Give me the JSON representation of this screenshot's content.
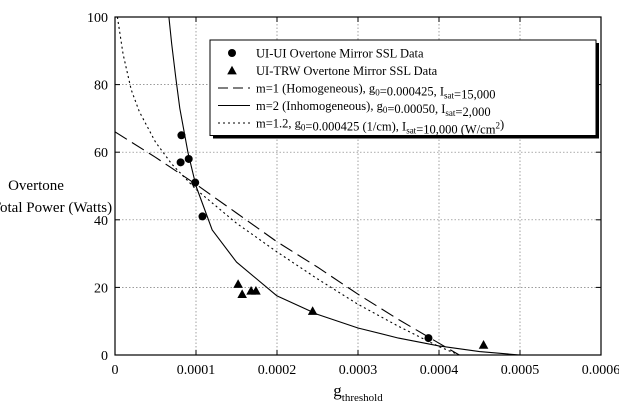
{
  "chart_data": {
    "type": "scatter",
    "title": "",
    "xlabel": "g",
    "xlabel_subscript": "threshold",
    "ylabel_line1": "Overtone",
    "ylabel_line2": "Total Power (Watts)",
    "xlim": [
      0,
      0.0006
    ],
    "ylim": [
      0,
      100
    ],
    "xticks": [
      0,
      0.0001,
      0.0002,
      0.0003,
      0.0004,
      0.0005,
      0.0006
    ],
    "xtick_labels": [
      "0",
      "0.0001",
      "0.0002",
      "0.0003",
      "0.0004",
      "0.0005",
      "0.0006"
    ],
    "yticks": [
      0,
      20,
      40,
      60,
      80,
      100
    ],
    "ytick_labels": [
      "0",
      "20",
      "40",
      "60",
      "80",
      "100"
    ],
    "grid": true,
    "legend_position": "top-right",
    "series": [
      {
        "name": "UI-UI Overtone Mirror SSL Data",
        "kind": "points",
        "marker": "circle",
        "x": [
          8.1e-05,
          8.2e-05,
          9.1e-05,
          9.9e-05,
          0.000108,
          0.000387
        ],
        "y": [
          57,
          65,
          58,
          51,
          41,
          5
        ]
      },
      {
        "name": "UI-TRW Overtone Mirror SSL Data",
        "kind": "points",
        "marker": "triangle",
        "x": [
          0.000152,
          0.000157,
          0.000168,
          0.000174,
          0.000244,
          0.000455
        ],
        "y": [
          21,
          18,
          19,
          19,
          13,
          3
        ]
      },
      {
        "name": "m=1 (Homogeneous), g0=0.000425, Isat=15,000",
        "name_parts": [
          {
            "t": "m=1 (Homogeneous), g"
          },
          {
            "t": "0",
            "sub": true
          },
          {
            "t": "=0.000425, I"
          },
          {
            "t": "sat",
            "sub": true
          },
          {
            "t": "=15,000"
          }
        ],
        "kind": "curve",
        "dash": "dash",
        "x": [
          0,
          5e-05,
          0.0001,
          0.00015,
          0.0002,
          0.00025,
          0.0003,
          0.00035,
          0.0004,
          0.000425
        ],
        "y": [
          66,
          58.5,
          50.5,
          42,
          33.5,
          26,
          18,
          10.5,
          3.5,
          0
        ]
      },
      {
        "name": "m=2 (Inhomogeneous), g0=0.00050, Isat=2,000",
        "name_parts": [
          {
            "t": "m=2 (Inhomogeneous), g"
          },
          {
            "t": "0",
            "sub": true
          },
          {
            "t": "=0.00050, I"
          },
          {
            "t": "sat",
            "sub": true
          },
          {
            "t": "=2,000"
          }
        ],
        "kind": "curve",
        "dash": "solid",
        "x": [
          6.65e-05,
          7e-05,
          7.5e-05,
          8e-05,
          9e-05,
          0.0001,
          0.00012,
          0.00015,
          0.0002,
          0.00025,
          0.0003,
          0.00035,
          0.0004,
          0.00045,
          0.0005
        ],
        "y": [
          100,
          92,
          82,
          73,
          60,
          50,
          37,
          27.5,
          17.5,
          12,
          8,
          5,
          2.7,
          1,
          0
        ]
      },
      {
        "name": "m=1.2, g0=0.000425 (1/cm), Isat=10,000 (W/cm2)",
        "name_parts": [
          {
            "t": "m=1.2, g"
          },
          {
            "t": "0",
            "sub": true
          },
          {
            "t": "=0.000425 (1/cm), I"
          },
          {
            "t": "sat",
            "sub": true
          },
          {
            "t": "=10,000 (W/cm"
          },
          {
            "t": "2",
            "sup": true
          },
          {
            "t": ")"
          }
        ],
        "kind": "curve",
        "dash": "dot",
        "x": [
          3e-06,
          1e-05,
          2e-05,
          3e-05,
          5e-05,
          7e-05,
          0.0001,
          0.00015,
          0.0002,
          0.00025,
          0.0003,
          0.00035,
          0.0004,
          0.000425
        ],
        "y": [
          100,
          89,
          78.5,
          72,
          63,
          56.5,
          49,
          39,
          30.5,
          22.5,
          15,
          8.5,
          2.5,
          0
        ]
      }
    ]
  }
}
